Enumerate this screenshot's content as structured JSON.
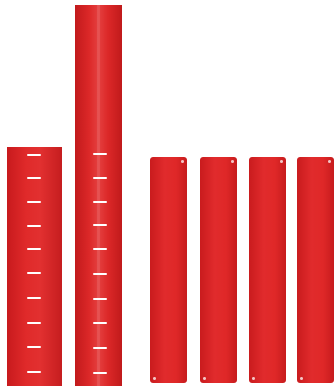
{
  "image": {
    "description_items": [
      {
        "kind": "scaled-panel-short",
        "color": "#dd2626",
        "tick_count": 10
      },
      {
        "kind": "scaled-panel-tall",
        "color": "#dd2626",
        "tick_count": 10
      },
      {
        "kind": "plain-plate",
        "color": "#de2727",
        "count": 4
      }
    ]
  }
}
